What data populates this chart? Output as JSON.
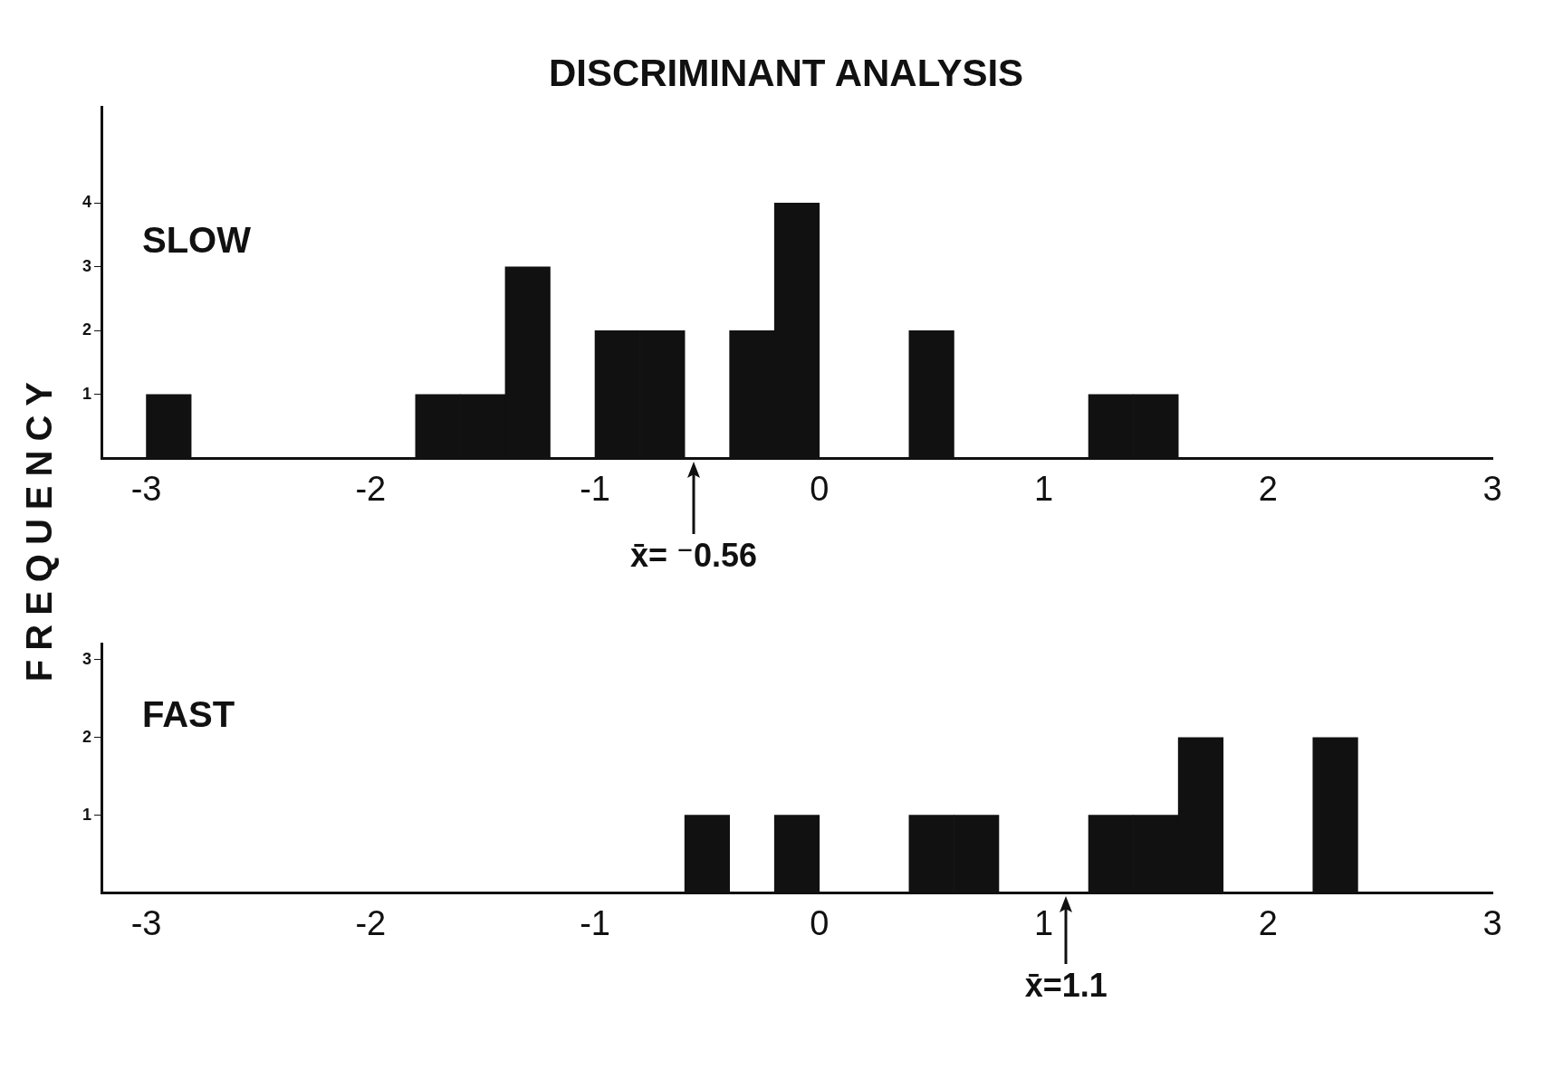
{
  "chart_data": [
    {
      "type": "histogram",
      "title": "DISCRIMINANT ANALYSIS",
      "subtitle": "SLOW",
      "ylabel": "FREQUENCY",
      "color": "#111111",
      "bins": [
        -3.0,
        -2.8,
        -2.6,
        -2.4,
        -2.2,
        -2.0,
        -1.8,
        -1.6,
        -1.4,
        -1.2,
        -1.0,
        -0.8,
        -0.6,
        -0.4,
        -0.2,
        0.0,
        0.2,
        0.4,
        0.6,
        0.8,
        1.0,
        1.2,
        1.4,
        1.6,
        1.8,
        2.0,
        2.2,
        2.4,
        2.6,
        2.8,
        3.0
      ],
      "values": [
        1,
        0,
        0,
        0,
        0,
        0,
        1,
        1,
        3,
        0,
        2,
        2,
        0,
        2,
        4,
        0,
        0,
        2,
        0,
        0,
        0,
        1,
        1,
        0,
        0,
        0,
        0,
        0,
        0,
        0
      ],
      "xlim": [
        -3.2,
        3
      ],
      "xticks": [
        -3,
        -2,
        -1,
        0,
        1,
        2,
        3
      ],
      "ylim": [
        0,
        5.5
      ],
      "yticks": [
        1,
        2,
        3,
        4
      ],
      "grid": false,
      "annotations": [
        {
          "text": "x̄= ⁻0.56",
          "x": -0.56,
          "y": 0
        }
      ]
    },
    {
      "type": "histogram",
      "subtitle": "FAST",
      "color": "#111111",
      "bins": [
        -3.0,
        -2.8,
        -2.6,
        -2.4,
        -2.2,
        -2.0,
        -1.8,
        -1.6,
        -1.4,
        -1.2,
        -1.0,
        -0.8,
        -0.6,
        -0.4,
        -0.2,
        0.0,
        0.2,
        0.4,
        0.6,
        0.8,
        1.0,
        1.2,
        1.4,
        1.6,
        1.8,
        2.0,
        2.2,
        2.4,
        2.6,
        2.8,
        3.0
      ],
      "values": [
        0,
        0,
        0,
        0,
        0,
        0,
        0,
        0,
        0,
        0,
        0,
        0,
        1,
        0,
        1,
        0,
        0,
        1,
        1,
        0,
        0,
        1,
        1,
        2,
        0,
        0,
        2,
        0,
        0,
        0
      ],
      "xlim": [
        -3.2,
        3
      ],
      "xticks": [
        -3,
        -2,
        -1,
        0,
        1,
        2,
        3
      ],
      "ylim": [
        0,
        3.2
      ],
      "yticks": [
        1,
        2,
        3
      ],
      "grid": false,
      "annotations": [
        {
          "text": "x̄=1.1",
          "x": 1.1,
          "y": 0
        }
      ]
    }
  ]
}
